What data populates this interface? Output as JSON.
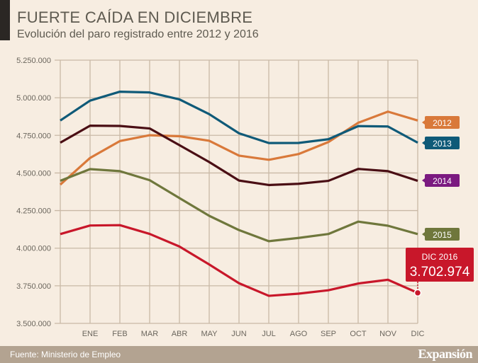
{
  "title": "FUERTE CAÍDA EN DICIEMBRE",
  "subtitle": "Evolución del paro registrado entre 2012 y 2016",
  "footer": {
    "source": "Fuente: Ministerio de Empleo",
    "logo": "Expansión"
  },
  "chart_data": {
    "type": "line",
    "title": "FUERTE CAÍDA EN DICIEMBRE",
    "xlabel": "",
    "ylabel": "",
    "categories": [
      "",
      "ENE",
      "FEB",
      "MAR",
      "ABR",
      "MAY",
      "JUN",
      "JUL",
      "AGO",
      "SEP",
      "OCT",
      "NOV",
      "DIC"
    ],
    "yticks": [
      3500000,
      3750000,
      4000000,
      4250000,
      4500000,
      4750000,
      5000000,
      5250000
    ],
    "ytick_labels": [
      "3.500.000",
      "3.750.000",
      "4.000.000",
      "4.250.000",
      "4.500.000",
      "4.750.000",
      "5.000.000",
      "5.250.000"
    ],
    "ylim": [
      3500000,
      5250000
    ],
    "grid": true,
    "series": [
      {
        "name": "2012",
        "color": "#d9793a",
        "values": [
          4422359,
          4599829,
          4712098,
          4750867,
          4744235,
          4714122,
          4615269,
          4587455,
          4625634,
          4705279,
          4833521,
          4907817,
          4848723
        ]
      },
      {
        "name": "2013",
        "color": "#0f5a78",
        "values": [
          4848723,
          4980778,
          5040222,
          5035243,
          4989193,
          4890928,
          4763680,
          4698814,
          4699500,
          4724355,
          4811383,
          4808908,
          4701338
        ]
      },
      {
        "name": "2014",
        "color": "#4a0e14",
        "label_color": "#7b1a80",
        "values": [
          4701338,
          4814435,
          4812486,
          4795866,
          4684937,
          4572385,
          4449701,
          4419860,
          4427930,
          4447650,
          4526804,
          4512153,
          4447711
        ]
      },
      {
        "name": "2015",
        "color": "#6f773c",
        "values": [
          4447711,
          4525691,
          4512116,
          4451939,
          4333016,
          4215031,
          4120304,
          4046276,
          4067955,
          4094042,
          4176369,
          4149298,
          4093508
        ]
      },
      {
        "name": "2016",
        "color": "#c8172a",
        "values": [
          4093508,
          4150710,
          4152986,
          4094770,
          4011026,
          3891403,
          3767054,
          3683061,
          3697496,
          3720297,
          3764982,
          3789823,
          3702974
        ]
      }
    ],
    "annotation": {
      "label": "DIC 2016",
      "value": "3.702.974"
    }
  }
}
